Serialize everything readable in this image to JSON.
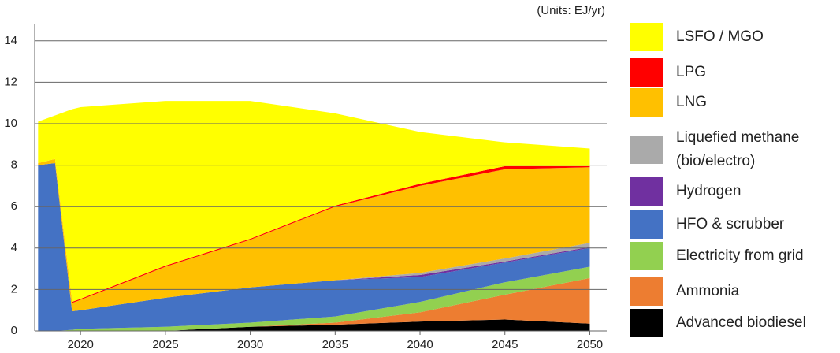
{
  "chart_data": {
    "type": "stacked_area",
    "annotation": "(Units: EJ/yr)",
    "x": [
      2017.5,
      2018.5,
      2019.5,
      2020,
      2025,
      2030,
      2035,
      2040,
      2045,
      2050
    ],
    "xlim": [
      2017.3,
      2051
    ],
    "xticks": [
      2020,
      2025,
      2030,
      2035,
      2040,
      2045,
      2050
    ],
    "ylim": [
      0,
      14.8
    ],
    "yticks": [
      0,
      2,
      4,
      6,
      8,
      10,
      12,
      14
    ],
    "grid": true,
    "legend": "right",
    "series": [
      {
        "name": "Advanced biodiesel",
        "color": "#000000",
        "values": [
          0,
          0,
          0,
          0,
          0,
          0.2,
          0.3,
          0.45,
          0.55,
          0.35
        ]
      },
      {
        "name": "Ammonia",
        "color": "#ed7d31",
        "values": [
          0,
          0,
          0,
          0,
          0,
          0,
          0.1,
          0.45,
          1.2,
          2.2
        ]
      },
      {
        "name": "Electricity from grid",
        "color": "#92d050",
        "values": [
          0,
          0,
          0.05,
          0.1,
          0.2,
          0.2,
          0.3,
          0.5,
          0.6,
          0.55
        ]
      },
      {
        "name": "HFO & scrubber",
        "color": "#4472c4",
        "values": [
          8.0,
          8.1,
          0.9,
          0.9,
          1.4,
          1.7,
          1.75,
          1.2,
          0.95,
          0.9
        ]
      },
      {
        "name": "Hydrogen",
        "color": "#7030a0",
        "values": [
          0,
          0,
          0,
          0,
          0,
          0,
          0,
          0.1,
          0.05,
          0.05
        ]
      },
      {
        "name": "Liquefied methane (bio/electro)",
        "color": "#aaaaaa",
        "values": [
          0,
          0,
          0,
          0,
          0,
          0,
          0,
          0.1,
          0.15,
          0.2
        ]
      },
      {
        "name": "LNG",
        "color": "#ffc000",
        "values": [
          0.1,
          0.2,
          0.4,
          0.5,
          1.5,
          2.3,
          3.55,
          4.2,
          4.3,
          3.65
        ]
      },
      {
        "name": "LPG",
        "color": "#ff0000",
        "values": [
          0,
          0,
          0.05,
          0.05,
          0.05,
          0.05,
          0.05,
          0.1,
          0.15,
          0.05
        ]
      },
      {
        "name": "LSFO / MGO",
        "color": "#ffff00",
        "values": [
          2.0,
          2.1,
          9.3,
          9.25,
          7.95,
          6.65,
          4.45,
          2.5,
          1.15,
          0.85
        ]
      }
    ]
  }
}
